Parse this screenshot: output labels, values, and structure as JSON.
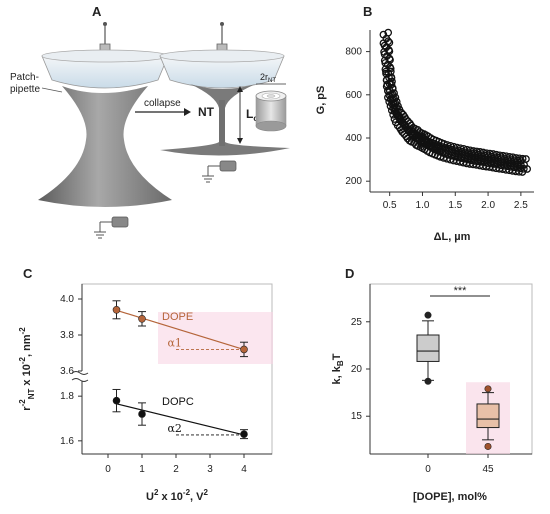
{
  "panels": {
    "a": "A",
    "b": "B",
    "c": "C",
    "d": "D"
  },
  "diagram_a": {
    "patch_pipette_label_1": "Patch-",
    "patch_pipette_label_2": "pipette",
    "collapse_label": "collapse",
    "nt_label": "NT",
    "lc_label": "L",
    "lc_sub": "c",
    "rnt_label": "2r",
    "rnt_sub": "NT"
  },
  "chart_data": [
    {
      "type": "scatter",
      "panel": "B",
      "xlabel": "ΔL, µm",
      "ylabel": "G, pS",
      "xticks": [
        0.5,
        1.0,
        1.5,
        2.0,
        2.5
      ],
      "yticks": [
        200,
        400,
        600,
        800
      ],
      "xlim": [
        0.2,
        2.7
      ],
      "ylim": [
        150,
        900
      ],
      "x": [
        0.45,
        0.45,
        0.46,
        0.47,
        0.48,
        0.49,
        0.5,
        0.5,
        0.52,
        0.54,
        0.56,
        0.58,
        0.6,
        0.62,
        0.65,
        0.68,
        0.7,
        0.72,
        0.75,
        0.78,
        0.8,
        0.83,
        0.86,
        0.9,
        0.93,
        0.96,
        1.0,
        1.03,
        1.06,
        1.1,
        1.14,
        1.18,
        1.22,
        1.26,
        1.3,
        1.35,
        1.4,
        1.45,
        1.5,
        1.55,
        1.6,
        1.65,
        1.7,
        1.75,
        1.8,
        1.85,
        1.9,
        1.95,
        2.0,
        2.05,
        2.1,
        2.15,
        2.2,
        2.25,
        2.3,
        2.35,
        2.4,
        2.45,
        2.5,
        2.55
      ],
      "y": [
        860,
        820,
        780,
        740,
        700,
        680,
        650,
        620,
        600,
        580,
        560,
        540,
        520,
        505,
        490,
        480,
        470,
        460,
        450,
        440,
        430,
        420,
        415,
        410,
        400,
        395,
        390,
        385,
        380,
        372,
        365,
        360,
        355,
        350,
        345,
        340,
        336,
        332,
        328,
        325,
        322,
        318,
        315,
        312,
        310,
        308,
        305,
        302,
        300,
        298,
        295,
        292,
        290,
        288,
        285,
        283,
        280,
        278,
        276,
        275
      ]
    },
    {
      "type": "line",
      "panel": "C",
      "xlabel": "U² x 10⁻², V²",
      "ylabel": "r⁻²NT x 10⁻², nm⁻²",
      "xticks": [
        0,
        1,
        2,
        3,
        4
      ],
      "yticks_lower": [
        1.6,
        1.8
      ],
      "yticks_upper": [
        3.6,
        3.8,
        4.0
      ],
      "axis_break": true,
      "series": [
        {
          "name": "DOPE",
          "color": "#b5653a",
          "x": [
            0.25,
            1.0,
            4.0
          ],
          "y": [
            3.94,
            3.89,
            3.72
          ],
          "err": [
            0.05,
            0.04,
            0.04
          ],
          "slope_label": "α1"
        },
        {
          "name": "DOPC",
          "color": "#111111",
          "x": [
            0.25,
            1.0,
            4.0
          ],
          "y": [
            1.78,
            1.72,
            1.63
          ],
          "err": [
            0.05,
            0.05,
            0.02
          ],
          "slope_label": "α2"
        }
      ]
    },
    {
      "type": "box",
      "panel": "D",
      "xlabel": "[DOPE], mol%",
      "ylabel": "k, kBT",
      "categories": [
        "0",
        "45"
      ],
      "yticks": [
        15,
        20,
        25
      ],
      "ylim": [
        11,
        29
      ],
      "significance": "***",
      "boxes": [
        {
          "category": "0",
          "min": 18.8,
          "q1": 20.8,
          "median": 21.9,
          "q3": 23.6,
          "max": 25.1,
          "outliers": [
            25.7,
            18.7
          ],
          "fill": "#cccccc"
        },
        {
          "category": "45",
          "min": 12.5,
          "q1": 13.8,
          "median": 14.7,
          "q3": 16.3,
          "max": 17.5,
          "outliers": [
            11.8,
            17.9
          ],
          "fill": "#e8c0a8"
        }
      ]
    }
  ],
  "colors": {
    "dope": "#b5653a",
    "dopc": "#111111",
    "highlight": "#f8d6e4",
    "membrane": "#808080"
  }
}
